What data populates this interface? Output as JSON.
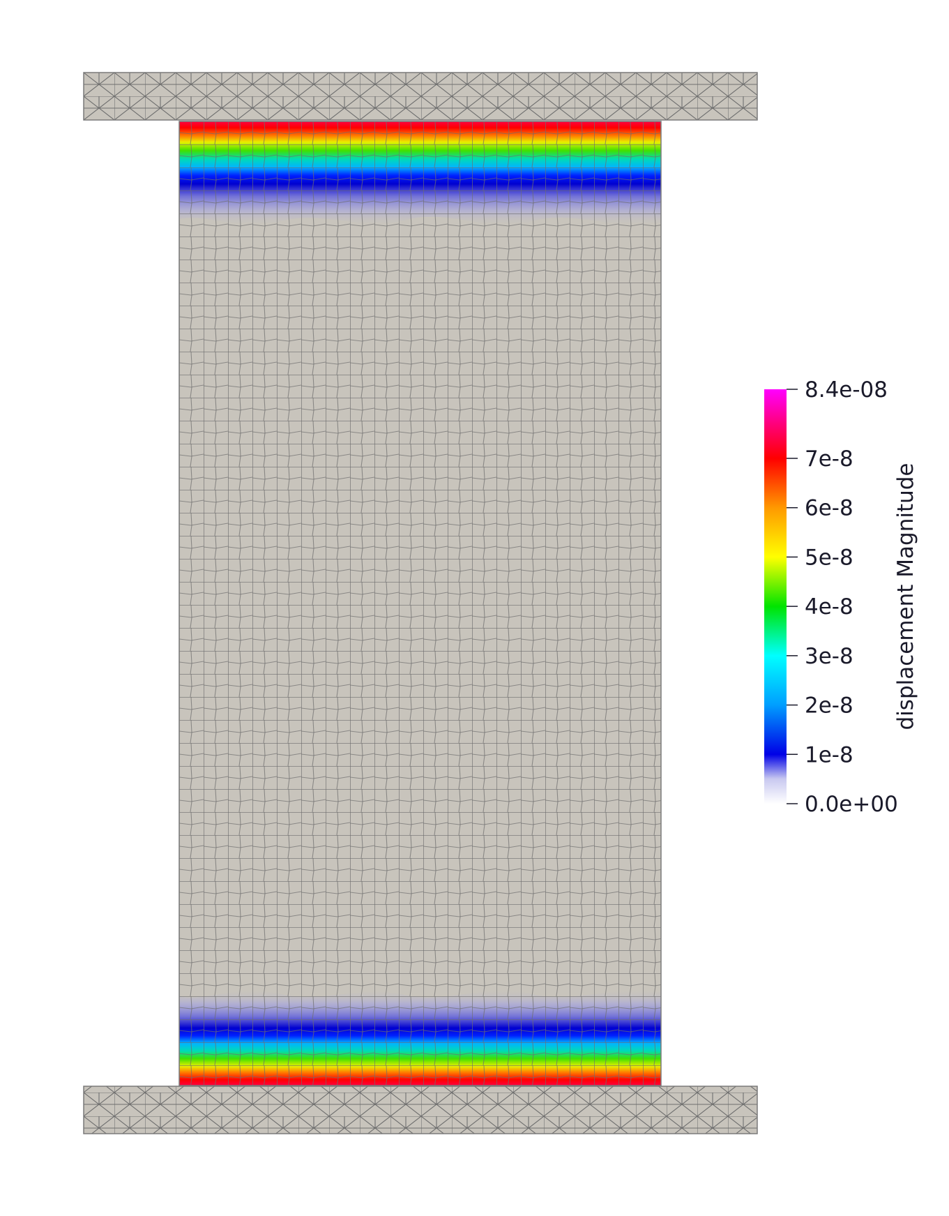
{
  "colorbar": {
    "title": "displacement Magnitude",
    "range": [
      0,
      8.4e-08
    ],
    "ticks": [
      {
        "value": 8.4e-08,
        "label": "8.4e-08"
      },
      {
        "value": 7e-08,
        "label": "7e-8"
      },
      {
        "value": 6e-08,
        "label": "6e-8"
      },
      {
        "value": 5e-08,
        "label": "5e-8"
      },
      {
        "value": 4e-08,
        "label": "4e-8"
      },
      {
        "value": 3e-08,
        "label": "3e-8"
      },
      {
        "value": 2e-08,
        "label": "2e-8"
      },
      {
        "value": 1e-08,
        "label": "1e-8"
      },
      {
        "value": 0,
        "label": "0.0e+00"
      }
    ]
  },
  "colors": {
    "mesh_fill": "#c8c4bc",
    "mesh_edge": "#6e6e6e",
    "outline": "#7a7a7a"
  }
}
